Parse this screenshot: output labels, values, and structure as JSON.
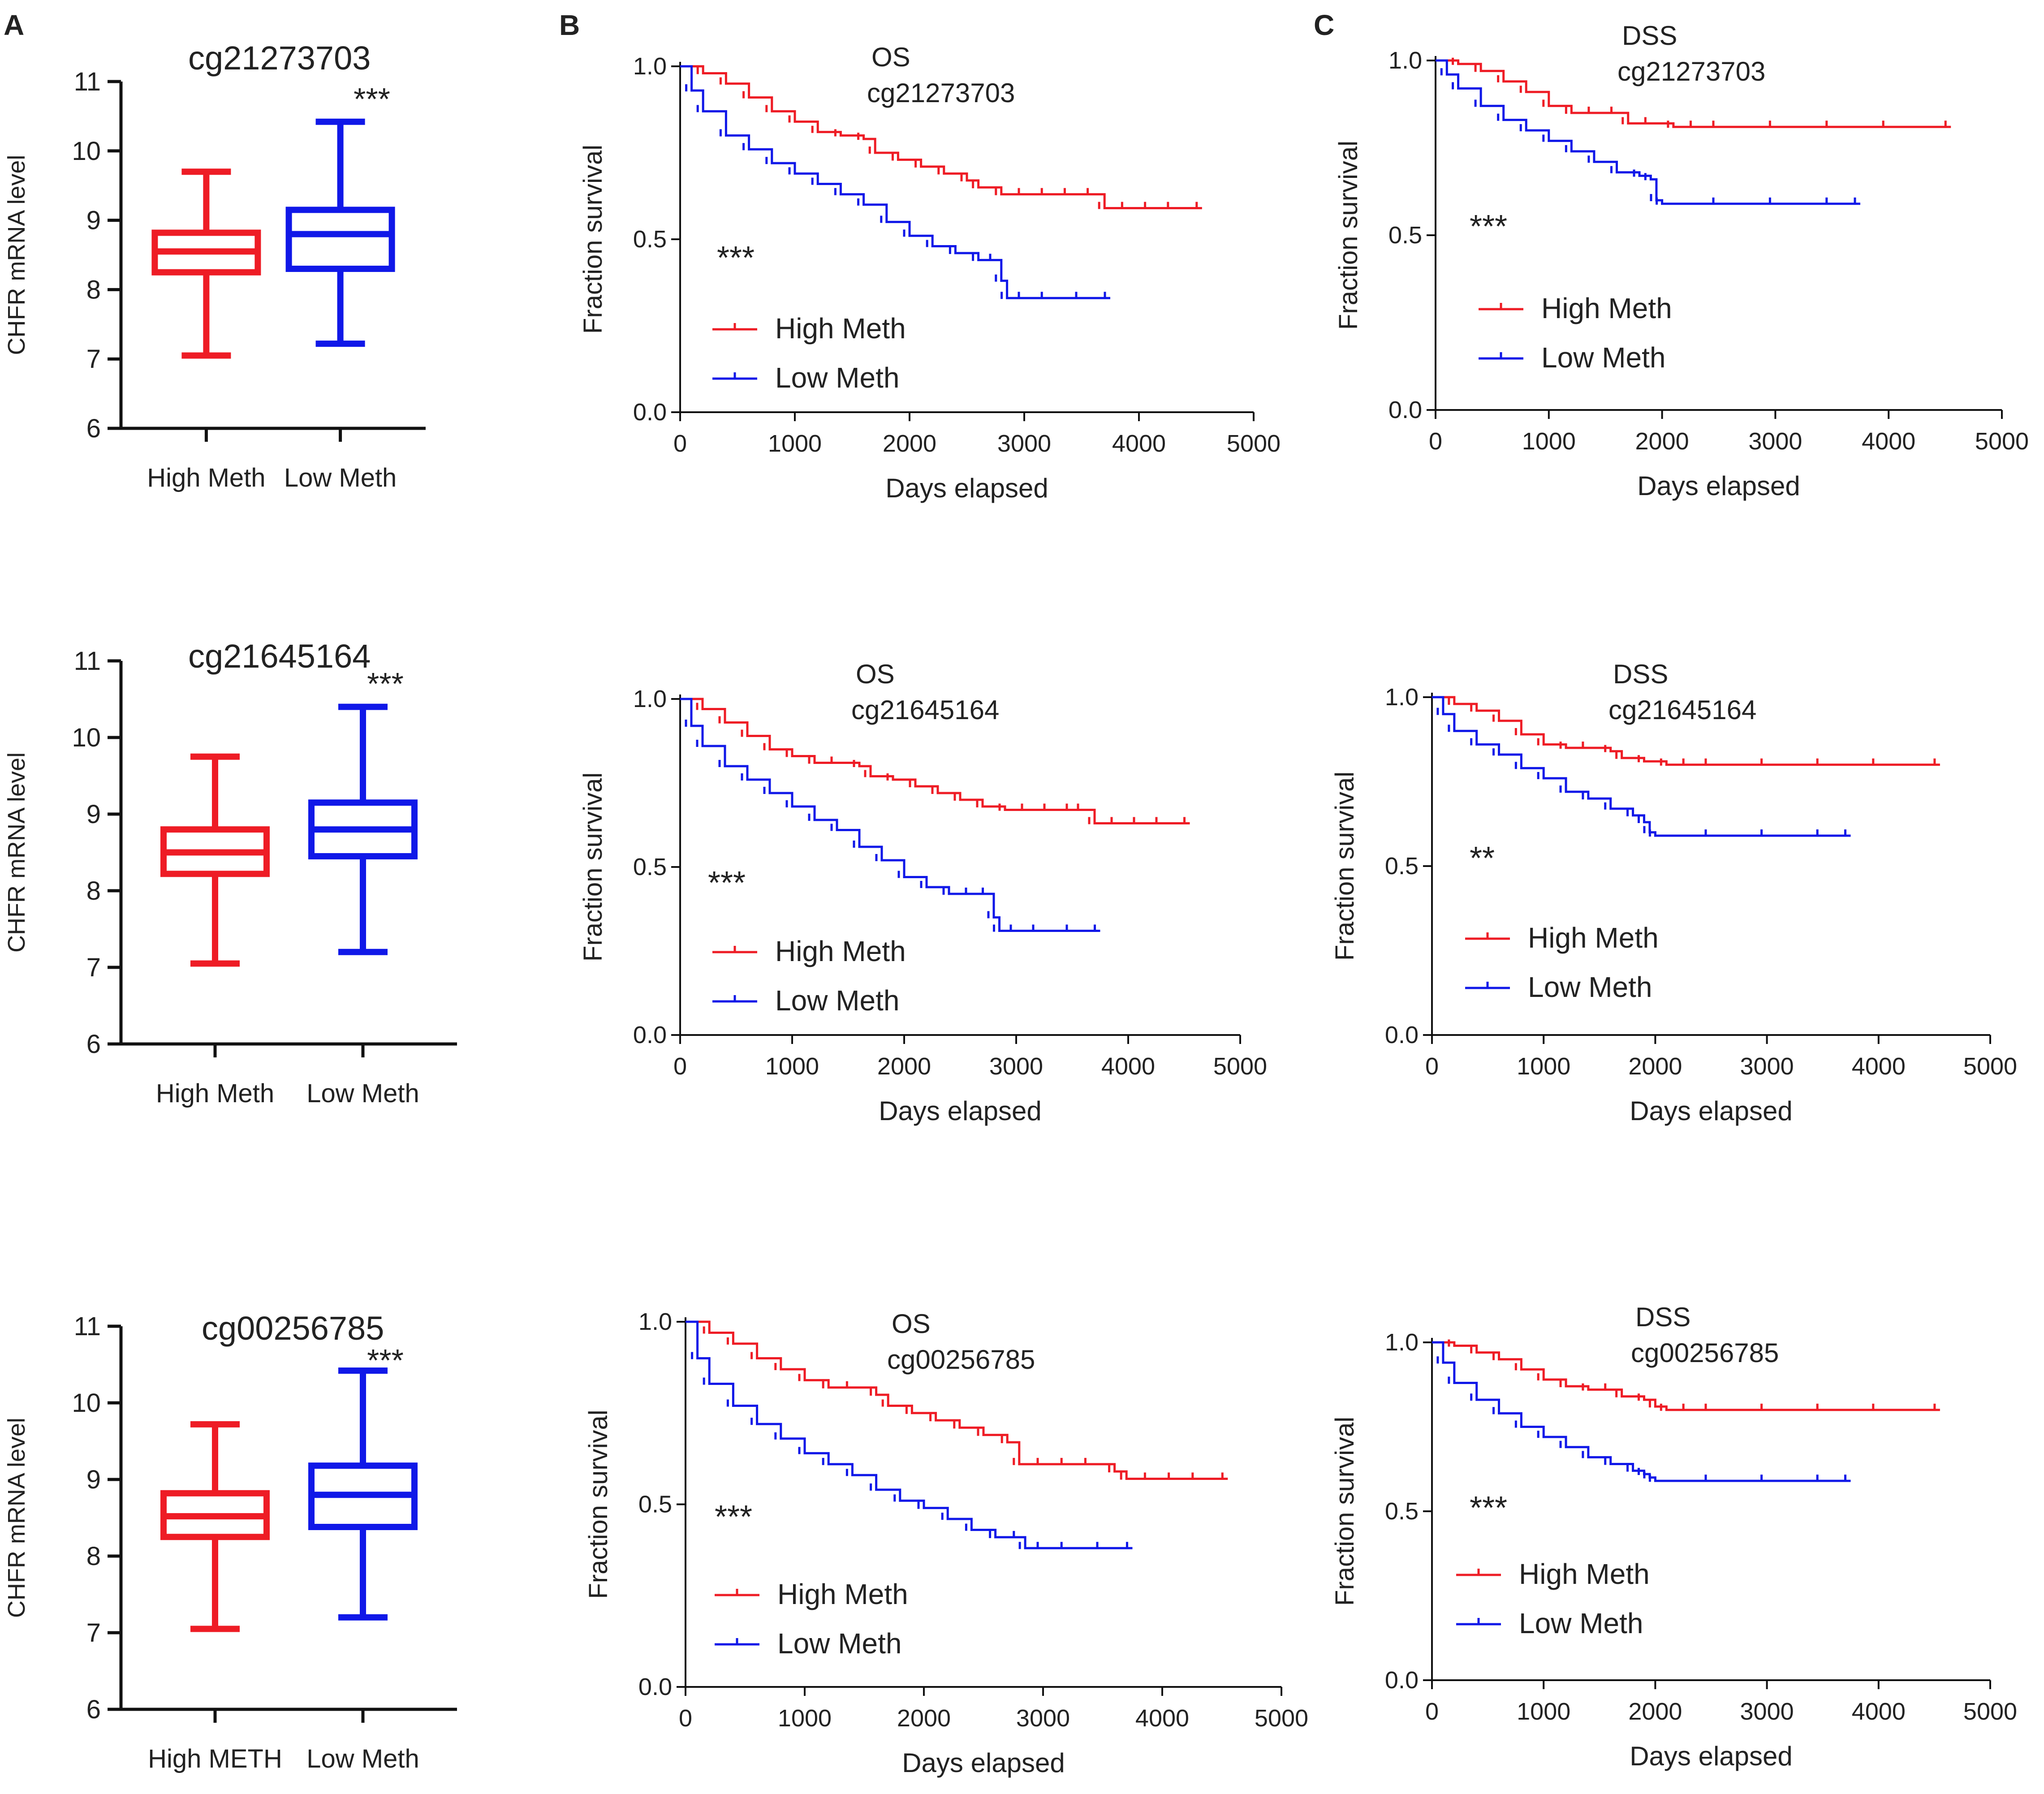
{
  "panel_labels": [
    "A",
    "B",
    "C"
  ],
  "colors": {
    "high": "#ee1c25",
    "low": "#1018e8",
    "axis": "#111111",
    "text": "#222222"
  },
  "chart_data": [
    {
      "type": "box",
      "panel": "A",
      "title": "cg21273703",
      "ylabel": "CHFR mRNA level",
      "ylim": [
        6,
        11
      ],
      "yticks": [
        "6",
        "7",
        "8",
        "9",
        "10",
        "11"
      ],
      "groups": [
        {
          "name": "High Meth",
          "min": 7.05,
          "q1": 8.25,
          "median": 8.55,
          "q3": 8.82,
          "max": 9.7
        },
        {
          "name": "Low Meth",
          "min": 7.22,
          "q1": 8.3,
          "median": 8.8,
          "q3": 9.15,
          "max": 10.42
        }
      ],
      "significance": "***"
    },
    {
      "type": "box",
      "panel": "A",
      "title": "cg21645164",
      "ylabel": "CHFR mRNA level",
      "ylim": [
        6,
        11
      ],
      "yticks": [
        "6",
        "7",
        "8",
        "9",
        "10",
        "11"
      ],
      "groups": [
        {
          "name": "High Meth",
          "min": 7.05,
          "q1": 8.22,
          "median": 8.5,
          "q3": 8.8,
          "max": 9.75
        },
        {
          "name": "Low Meth",
          "min": 7.2,
          "q1": 8.45,
          "median": 8.8,
          "q3": 9.15,
          "max": 10.4
        }
      ],
      "significance": "***"
    },
    {
      "type": "box",
      "panel": "A",
      "title": "cg00256785",
      "ylabel": "CHFR mRNA level",
      "ylim": [
        6,
        11
      ],
      "yticks": [
        "6",
        "7",
        "8",
        "9",
        "10",
        "11"
      ],
      "groups": [
        {
          "name": "High METH",
          "min": 7.05,
          "q1": 8.25,
          "median": 8.52,
          "q3": 8.82,
          "max": 9.72
        },
        {
          "name": "Low Meth",
          "min": 7.2,
          "q1": 8.38,
          "median": 8.8,
          "q3": 9.18,
          "max": 10.42
        }
      ],
      "significance": "***"
    },
    {
      "type": "line",
      "panel": "B",
      "endpoint": "OS",
      "probe": "cg21273703",
      "xlabel": "Days elapsed",
      "ylabel": "Fraction survival",
      "xlim": [
        0,
        5000
      ],
      "ylim": [
        0,
        1
      ],
      "xticks": [
        "0",
        "1000",
        "2000",
        "3000",
        "4000",
        "5000"
      ],
      "yticks": [
        "0.0",
        "0.5",
        "1.0"
      ],
      "significance": "***",
      "series": [
        {
          "name": "High Meth",
          "color": "high",
          "x": [
            0,
            200,
            400,
            600,
            800,
            1000,
            1200,
            1400,
            1600,
            1700,
            1900,
            2100,
            2300,
            2500,
            2600,
            2800,
            3000,
            3200,
            3400,
            3600,
            3700,
            3900,
            4100,
            4300,
            4550
          ],
          "y": [
            1.0,
            0.98,
            0.95,
            0.91,
            0.87,
            0.84,
            0.81,
            0.8,
            0.79,
            0.75,
            0.73,
            0.71,
            0.69,
            0.67,
            0.65,
            0.63,
            0.63,
            0.63,
            0.63,
            0.63,
            0.59,
            0.59,
            0.59,
            0.59,
            0.59
          ]
        },
        {
          "name": "Low Meth",
          "color": "low",
          "x": [
            0,
            100,
            200,
            400,
            600,
            800,
            1000,
            1200,
            1400,
            1600,
            1800,
            2000,
            2200,
            2400,
            2600,
            2750,
            2800,
            2850,
            3000,
            3200,
            3500,
            3750
          ],
          "y": [
            1.0,
            0.93,
            0.87,
            0.8,
            0.76,
            0.72,
            0.69,
            0.66,
            0.63,
            0.6,
            0.55,
            0.51,
            0.48,
            0.46,
            0.44,
            0.44,
            0.38,
            0.33,
            0.33,
            0.33,
            0.33,
            0.33
          ]
        }
      ]
    },
    {
      "type": "line",
      "panel": "B",
      "endpoint": "OS",
      "probe": "cg21645164",
      "xlabel": "Days elapsed",
      "ylabel": "Fraction survival",
      "xlim": [
        0,
        5000
      ],
      "ylim": [
        0,
        1
      ],
      "xticks": [
        "0",
        "1000",
        "2000",
        "3000",
        "4000",
        "5000"
      ],
      "yticks": [
        "0.0",
        "0.5",
        "1.0"
      ],
      "significance": "***",
      "series": [
        {
          "name": "High Meth",
          "color": "high",
          "x": [
            0,
            200,
            400,
            600,
            800,
            1000,
            1200,
            1400,
            1600,
            1700,
            1900,
            2100,
            2300,
            2500,
            2700,
            2900,
            3100,
            3300,
            3500,
            3600,
            3700,
            3900,
            4100,
            4300,
            4550
          ],
          "y": [
            1.0,
            0.97,
            0.93,
            0.89,
            0.85,
            0.83,
            0.81,
            0.81,
            0.8,
            0.77,
            0.76,
            0.74,
            0.72,
            0.7,
            0.68,
            0.67,
            0.67,
            0.67,
            0.67,
            0.67,
            0.63,
            0.63,
            0.63,
            0.63,
            0.63
          ]
        },
        {
          "name": "Low Meth",
          "color": "low",
          "x": [
            0,
            100,
            200,
            400,
            600,
            800,
            1000,
            1200,
            1400,
            1600,
            1800,
            2000,
            2200,
            2400,
            2600,
            2750,
            2800,
            2850,
            3000,
            3200,
            3500,
            3750
          ],
          "y": [
            1.0,
            0.92,
            0.86,
            0.8,
            0.76,
            0.72,
            0.68,
            0.64,
            0.61,
            0.56,
            0.52,
            0.47,
            0.44,
            0.42,
            0.42,
            0.42,
            0.35,
            0.31,
            0.31,
            0.31,
            0.31,
            0.31
          ]
        }
      ]
    },
    {
      "type": "line",
      "panel": "B",
      "endpoint": "OS",
      "probe": "cg00256785",
      "xlabel": "Days elapsed",
      "ylabel": "Fraction survival",
      "xlim": [
        0,
        5000
      ],
      "ylim": [
        0,
        1
      ],
      "xticks": [
        "0",
        "1000",
        "2000",
        "3000",
        "4000",
        "5000"
      ],
      "yticks": [
        "0.0",
        "0.5",
        "1.0"
      ],
      "significance": "***",
      "series": [
        {
          "name": "High Meth",
          "color": "high",
          "x": [
            0,
            200,
            400,
            600,
            800,
            1000,
            1200,
            1400,
            1600,
            1700,
            1900,
            2100,
            2300,
            2500,
            2700,
            2800,
            3000,
            3200,
            3400,
            3600,
            3700,
            3900,
            4100,
            4300,
            4550
          ],
          "y": [
            1.0,
            0.97,
            0.94,
            0.9,
            0.87,
            0.84,
            0.82,
            0.82,
            0.8,
            0.77,
            0.75,
            0.73,
            0.71,
            0.69,
            0.67,
            0.61,
            0.61,
            0.61,
            0.61,
            0.59,
            0.57,
            0.57,
            0.57,
            0.57,
            0.57
          ]
        },
        {
          "name": "Low Meth",
          "color": "low",
          "x": [
            0,
            100,
            200,
            400,
            600,
            800,
            1000,
            1200,
            1400,
            1600,
            1800,
            2000,
            2200,
            2400,
            2600,
            2800,
            2850,
            3000,
            3200,
            3500,
            3750
          ],
          "y": [
            1.0,
            0.9,
            0.83,
            0.77,
            0.72,
            0.68,
            0.64,
            0.61,
            0.58,
            0.54,
            0.51,
            0.49,
            0.46,
            0.43,
            0.41,
            0.41,
            0.38,
            0.38,
            0.38,
            0.38,
            0.38
          ]
        }
      ]
    },
    {
      "type": "line",
      "panel": "C",
      "endpoint": "DSS",
      "probe": "cg21273703",
      "xlabel": "Days elapsed",
      "ylabel": "Fraction survival",
      "xlim": [
        0,
        5000
      ],
      "ylim": [
        0,
        1
      ],
      "xticks": [
        "0",
        "1000",
        "2000",
        "3000",
        "4000",
        "5000"
      ],
      "yticks": [
        "0.0",
        "0.5",
        "1.0"
      ],
      "significance": "***",
      "series": [
        {
          "name": "High Meth",
          "color": "high",
          "x": [
            0,
            200,
            400,
            600,
            800,
            1000,
            1200,
            1400,
            1600,
            1700,
            1900,
            2100,
            2300,
            2500,
            3000,
            3500,
            4000,
            4550
          ],
          "y": [
            1.0,
            0.99,
            0.97,
            0.94,
            0.91,
            0.87,
            0.85,
            0.85,
            0.85,
            0.82,
            0.82,
            0.81,
            0.81,
            0.81,
            0.81,
            0.81,
            0.81,
            0.81
          ]
        },
        {
          "name": "Low Meth",
          "color": "low",
          "x": [
            0,
            100,
            200,
            400,
            600,
            800,
            1000,
            1200,
            1400,
            1600,
            1800,
            1900,
            1950,
            2000,
            2500,
            3000,
            3500,
            3750
          ],
          "y": [
            1.0,
            0.96,
            0.92,
            0.87,
            0.83,
            0.8,
            0.77,
            0.74,
            0.71,
            0.68,
            0.67,
            0.66,
            0.6,
            0.59,
            0.59,
            0.59,
            0.59,
            0.59
          ]
        }
      ]
    },
    {
      "type": "line",
      "panel": "C",
      "endpoint": "DSS",
      "probe": "cg21645164",
      "xlabel": "Days elapsed",
      "ylabel": "Fraction survival",
      "xlim": [
        0,
        5000
      ],
      "ylim": [
        0,
        1
      ],
      "xticks": [
        "0",
        "1000",
        "2000",
        "3000",
        "4000",
        "5000"
      ],
      "yticks": [
        "0.0",
        "0.5",
        "1.0"
      ],
      "significance": "**",
      "series": [
        {
          "name": "High Meth",
          "color": "high",
          "x": [
            0,
            200,
            400,
            600,
            800,
            1000,
            1200,
            1400,
            1600,
            1700,
            1900,
            2100,
            2300,
            2500,
            3000,
            3500,
            4000,
            4550
          ],
          "y": [
            1.0,
            0.98,
            0.96,
            0.93,
            0.89,
            0.86,
            0.85,
            0.85,
            0.84,
            0.82,
            0.81,
            0.8,
            0.8,
            0.8,
            0.8,
            0.8,
            0.8,
            0.8
          ]
        },
        {
          "name": "Low Meth",
          "color": "low",
          "x": [
            0,
            100,
            200,
            400,
            600,
            800,
            1000,
            1200,
            1400,
            1600,
            1800,
            1900,
            1950,
            2000,
            2500,
            3000,
            3500,
            3750
          ],
          "y": [
            1.0,
            0.95,
            0.9,
            0.86,
            0.83,
            0.79,
            0.76,
            0.72,
            0.7,
            0.67,
            0.65,
            0.63,
            0.6,
            0.59,
            0.59,
            0.59,
            0.59,
            0.59
          ]
        }
      ]
    },
    {
      "type": "line",
      "panel": "C",
      "endpoint": "DSS",
      "probe": "cg00256785",
      "xlabel": "Days elapsed",
      "ylabel": "Fraction survival",
      "xlim": [
        0,
        5000
      ],
      "ylim": [
        0,
        1
      ],
      "xticks": [
        "0",
        "1000",
        "2000",
        "3000",
        "4000",
        "5000"
      ],
      "yticks": [
        "0.0",
        "0.5",
        "1.0"
      ],
      "significance": "***",
      "series": [
        {
          "name": "High Meth",
          "color": "high",
          "x": [
            0,
            200,
            400,
            600,
            800,
            1000,
            1200,
            1400,
            1600,
            1700,
            1900,
            2000,
            2100,
            2300,
            2500,
            3000,
            3500,
            4000,
            4550
          ],
          "y": [
            1.0,
            0.99,
            0.97,
            0.95,
            0.92,
            0.89,
            0.87,
            0.86,
            0.86,
            0.84,
            0.83,
            0.81,
            0.8,
            0.8,
            0.8,
            0.8,
            0.8,
            0.8,
            0.8
          ]
        },
        {
          "name": "Low Meth",
          "color": "low",
          "x": [
            0,
            100,
            200,
            400,
            600,
            800,
            1000,
            1200,
            1400,
            1600,
            1800,
            1900,
            1950,
            2000,
            2500,
            3000,
            3500,
            3750
          ],
          "y": [
            1.0,
            0.94,
            0.88,
            0.83,
            0.79,
            0.75,
            0.72,
            0.69,
            0.66,
            0.64,
            0.62,
            0.61,
            0.6,
            0.59,
            0.59,
            0.59,
            0.59,
            0.59
          ]
        }
      ]
    }
  ]
}
